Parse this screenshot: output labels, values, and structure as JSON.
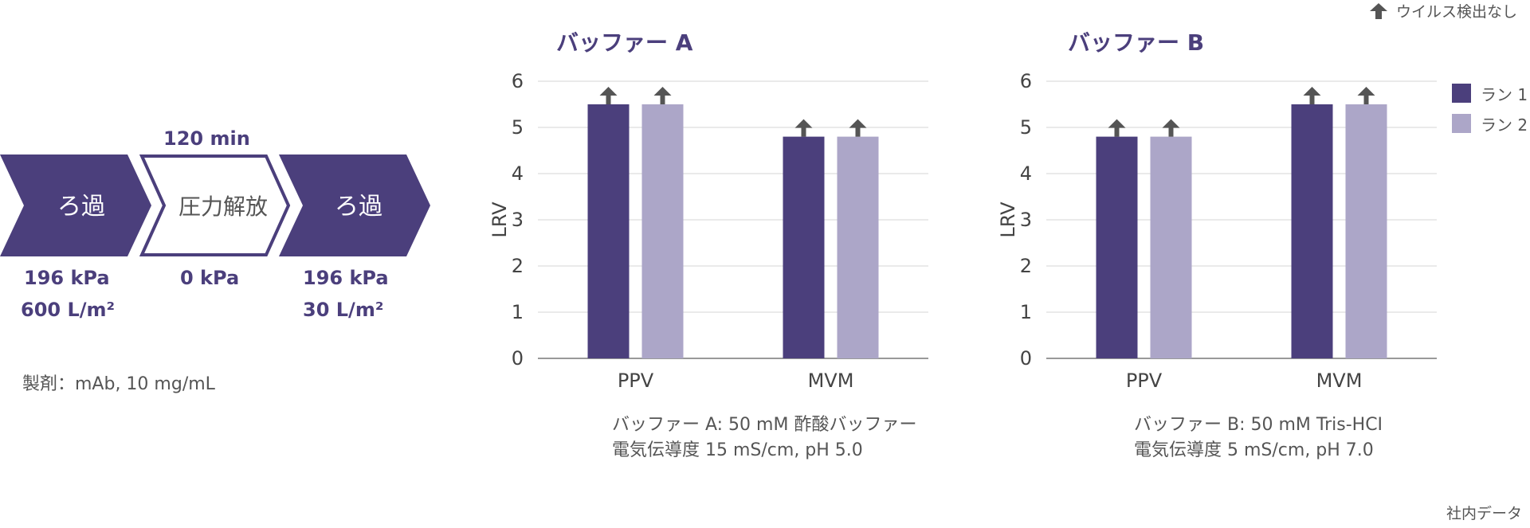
{
  "colors": {
    "run1": "#4b3f7c",
    "run2": "#aca6c8",
    "arrow": "#555555",
    "accent": "#4b3f7c"
  },
  "process": {
    "duration_label": "120 min",
    "steps": [
      {
        "label": "ろ過",
        "filled": true,
        "pressure": "196 kPa",
        "volume": "600 L/m²"
      },
      {
        "label": "圧力解放",
        "filled": false,
        "pressure": "0 kPa",
        "volume": ""
      },
      {
        "label": "ろ過",
        "filled": true,
        "pressure": "196 kPa",
        "volume": "30 L/m²"
      }
    ],
    "formulation": "製剤：mAb, 10 mg/mL"
  },
  "legend": {
    "no_virus_label": "ウイルス検出なし",
    "no_virus_icon": "up-arrow-icon",
    "run1": "ラン 1",
    "run2": "ラン 2"
  },
  "chart_data": [
    {
      "type": "bar",
      "title": "バッファー A",
      "ylabel": "LRV",
      "ylim": [
        0,
        6
      ],
      "yticks": [
        "0",
        "1",
        "2",
        "3",
        "4",
        "5",
        "6"
      ],
      "categories": [
        "PPV",
        "MVM"
      ],
      "series": [
        {
          "name": "ラン 1",
          "values": [
            5.5,
            4.8
          ]
        },
        {
          "name": "ラン 2",
          "values": [
            5.5,
            4.8
          ]
        }
      ],
      "no_virus_detected": [
        [
          true,
          true
        ],
        [
          true,
          true
        ]
      ],
      "note_line1": "バッファー A: 50 mM 酢酸バッファー",
      "note_line2": "電気伝導度 15 mS/cm, pH 5.0"
    },
    {
      "type": "bar",
      "title": "バッファー B",
      "ylabel": "LRV",
      "ylim": [
        0,
        6
      ],
      "yticks": [
        "0",
        "1",
        "2",
        "3",
        "4",
        "5",
        "6"
      ],
      "categories": [
        "PPV",
        "MVM"
      ],
      "series": [
        {
          "name": "ラン 1",
          "values": [
            4.8,
            5.5
          ]
        },
        {
          "name": "ラン 2",
          "values": [
            4.8,
            5.5
          ]
        }
      ],
      "no_virus_detected": [
        [
          true,
          true
        ],
        [
          true,
          true
        ]
      ],
      "note_line1": "バッファー B: 50 mM Tris-HCI",
      "note_line2": "電気伝導度 5 mS/cm, pH 7.0"
    }
  ],
  "footer": "社内データ"
}
